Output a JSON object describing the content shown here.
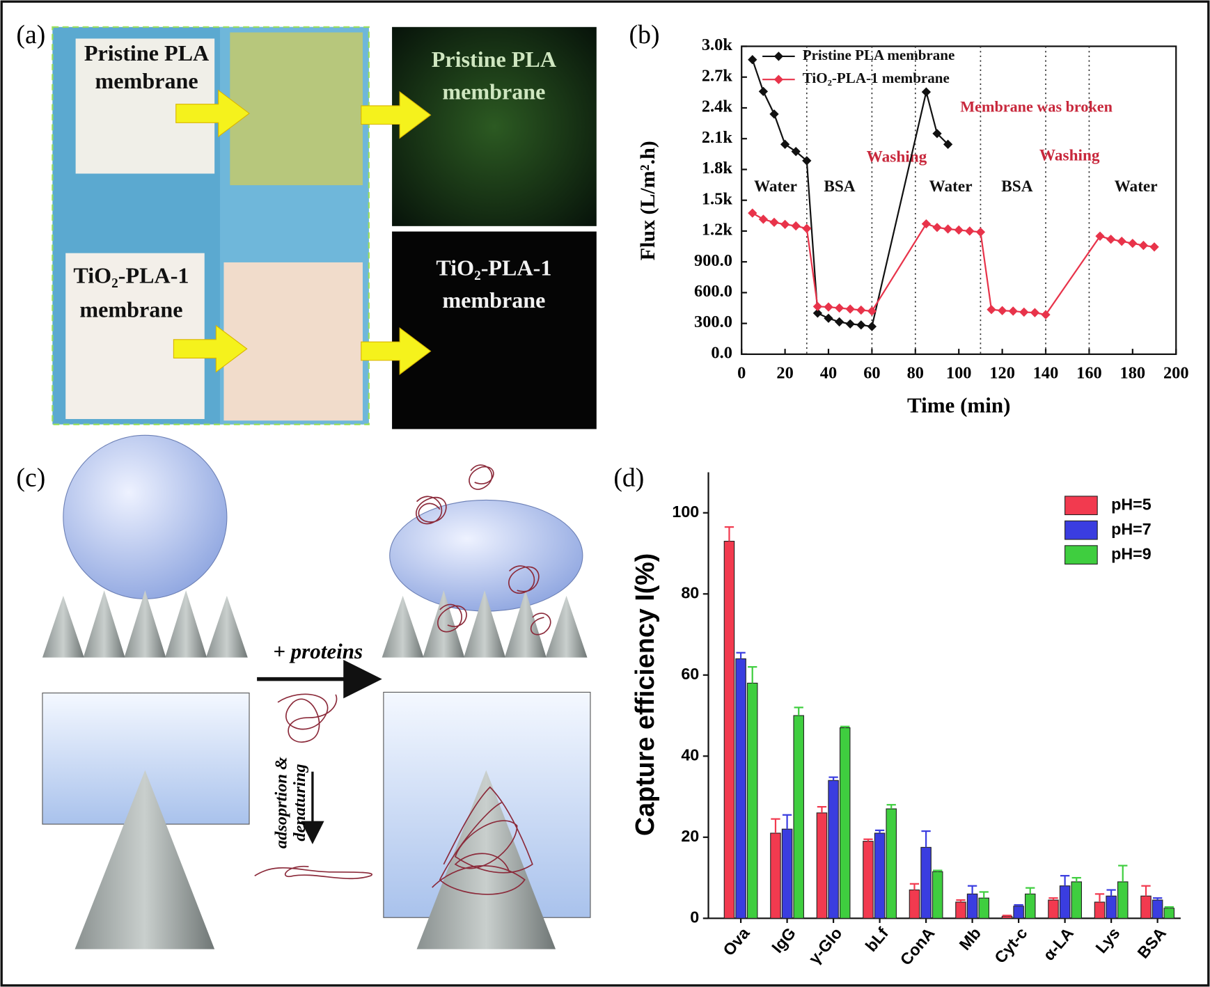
{
  "panels": [
    "(a)",
    "(b)",
    "(c)",
    "(d)"
  ],
  "photo": {
    "left_top": [
      "Pristine PLA",
      "membrane"
    ],
    "left_bottom": [
      "TiO₂-PLA-1",
      "membrane"
    ],
    "right_top": [
      "Pristine  PLA",
      "membrane"
    ],
    "right_bottom": [
      "TiO₂-PLA-1",
      "membrane"
    ]
  },
  "diagram": {
    "arrow_label": "+ proteins",
    "process_label": [
      "adsoprtion &",
      "denaturing"
    ]
  },
  "chart_data": [
    {
      "type": "line",
      "xlabel": "Time (min)",
      "ylabel": "Flux (L/m².h)",
      "xlim": [
        0,
        200
      ],
      "xticks": [
        0,
        20,
        40,
        60,
        80,
        100,
        120,
        140,
        160,
        180,
        200
      ],
      "ylim": [
        0,
        3000
      ],
      "yticks": [
        {
          "value": 0,
          "label": "0.0"
        },
        {
          "value": 300,
          "label": "300.0"
        },
        {
          "value": 600,
          "label": "600.0"
        },
        {
          "value": 900,
          "label": "900.0"
        },
        {
          "value": 1200,
          "label": "1.2k"
        },
        {
          "value": 1500,
          "label": "1.5k"
        },
        {
          "value": 1800,
          "label": "1.8k"
        },
        {
          "value": 2100,
          "label": "2.1k"
        },
        {
          "value": 2400,
          "label": "2.4k"
        },
        {
          "value": 2700,
          "label": "2.7k"
        },
        {
          "value": 3000,
          "label": "3.0k"
        }
      ],
      "vlines": [
        30,
        60,
        80,
        110,
        140,
        160
      ],
      "annotations": [
        {
          "text": "Water",
          "color": "#111111"
        },
        {
          "text": "BSA",
          "color": "#111111"
        },
        {
          "text": "Washing",
          "color": "#c8283c"
        },
        {
          "text": "Water",
          "color": "#111111"
        },
        {
          "text": "BSA",
          "color": "#111111"
        },
        {
          "text": "Washing",
          "color": "#c8283c"
        },
        {
          "text": "Water",
          "color": "#111111"
        },
        {
          "text": "Membrane was broken",
          "color": "#c8283c"
        }
      ],
      "series": [
        {
          "name": "Pristine PLA membrane",
          "color": "#111111",
          "x": [
            5,
            10,
            15,
            20,
            25,
            30,
            35,
            40,
            45,
            50,
            55,
            60,
            85,
            90,
            95
          ],
          "values": [
            2870,
            2560,
            2340,
            2045,
            1975,
            1885,
            400,
            350,
            315,
            295,
            285,
            270,
            2555,
            2150,
            2045
          ]
        },
        {
          "name": "TiO₂-PLA-1 membrane",
          "color": "#e8334a",
          "x": [
            5,
            10,
            15,
            20,
            25,
            30,
            35,
            40,
            45,
            50,
            55,
            60,
            85,
            90,
            95,
            100,
            105,
            110,
            115,
            120,
            125,
            130,
            135,
            140,
            165,
            170,
            175,
            180,
            185,
            190
          ],
          "values": [
            1375,
            1315,
            1285,
            1265,
            1250,
            1225,
            465,
            460,
            450,
            440,
            430,
            420,
            1270,
            1235,
            1220,
            1210,
            1200,
            1190,
            435,
            425,
            420,
            410,
            405,
            385,
            1150,
            1120,
            1100,
            1080,
            1060,
            1045
          ]
        }
      ],
      "legend": "upper left"
    },
    {
      "type": "bar",
      "ylabel": "Capture efficiency I(%)",
      "categories": [
        "Ova",
        "IgG",
        "γ-Glo",
        "bLf",
        "ConA",
        "Mb",
        "Cyt-c",
        "α-LA",
        "Lys",
        "BSA"
      ],
      "ylim": [
        0,
        110
      ],
      "yticks": [
        0,
        20,
        40,
        60,
        80,
        100
      ],
      "legend": "upper right",
      "series": [
        {
          "name": "pH=5",
          "color": "#f23a4f",
          "values": [
            93,
            21,
            26,
            19,
            7,
            4,
            0.5,
            4.5,
            4,
            5.5
          ],
          "errors": [
            3.5,
            3.5,
            1.5,
            0.5,
            1.5,
            0.5,
            0.2,
            0.5,
            2,
            2.5
          ]
        },
        {
          "name": "pH=7",
          "color": "#3a3de0",
          "values": [
            64,
            22,
            34,
            21,
            17.5,
            6,
            3,
            8,
            5.5,
            4.5
          ],
          "errors": [
            1.5,
            3.5,
            0.8,
            0.7,
            4,
            2,
            0.3,
            2.5,
            1.5,
            0.5
          ]
        },
        {
          "name": "pH=9",
          "color": "#3fce3f",
          "values": [
            58,
            50,
            47,
            27,
            11.5,
            5,
            6,
            9,
            9,
            2.5
          ],
          "errors": [
            4,
            2,
            0.3,
            1,
            0.3,
            1.5,
            1.5,
            1,
            4,
            0.3
          ]
        }
      ]
    }
  ]
}
